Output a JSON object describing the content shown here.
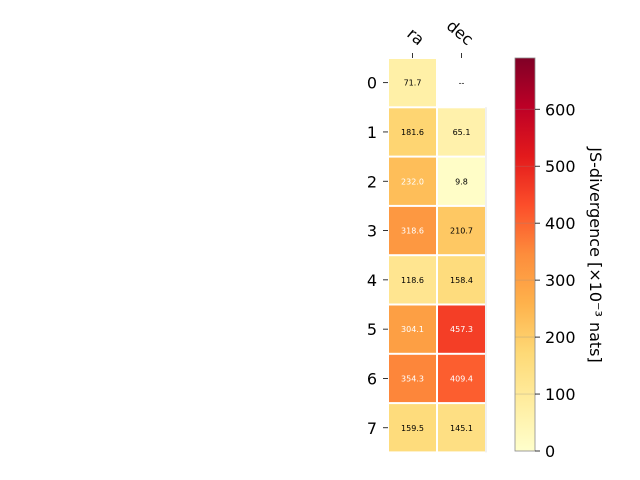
{
  "chart_data": {
    "type": "heatmap",
    "columns": [
      "ra",
      "dec"
    ],
    "rows": [
      "0",
      "1",
      "2",
      "3",
      "4",
      "5",
      "6",
      "7"
    ],
    "values": [
      [
        71.7,
        null
      ],
      [
        181.6,
        65.1
      ],
      [
        232.0,
        9.8
      ],
      [
        318.6,
        210.7
      ],
      [
        118.6,
        158.4
      ],
      [
        304.1,
        457.3
      ],
      [
        354.3,
        409.4
      ],
      [
        159.5,
        145.1
      ]
    ],
    "cell_labels": [
      [
        "71.7",
        "--"
      ],
      [
        "181.6",
        "65.1"
      ],
      [
        "232.0",
        "9.8"
      ],
      [
        "318.6",
        "210.7"
      ],
      [
        "118.6",
        "158.4"
      ],
      [
        "304.1",
        "457.3"
      ],
      [
        "354.3",
        "409.4"
      ],
      [
        "159.5",
        "145.1"
      ]
    ],
    "colormap": "YlOrRd",
    "colorbar": {
      "label": "JS-divergence [×10⁻³ nats]",
      "range": [
        0,
        690
      ],
      "ticks": [
        "0",
        "100",
        "200",
        "300",
        "400",
        "500",
        "600"
      ],
      "tick_values": [
        0,
        100,
        200,
        300,
        400,
        500,
        600
      ]
    }
  }
}
